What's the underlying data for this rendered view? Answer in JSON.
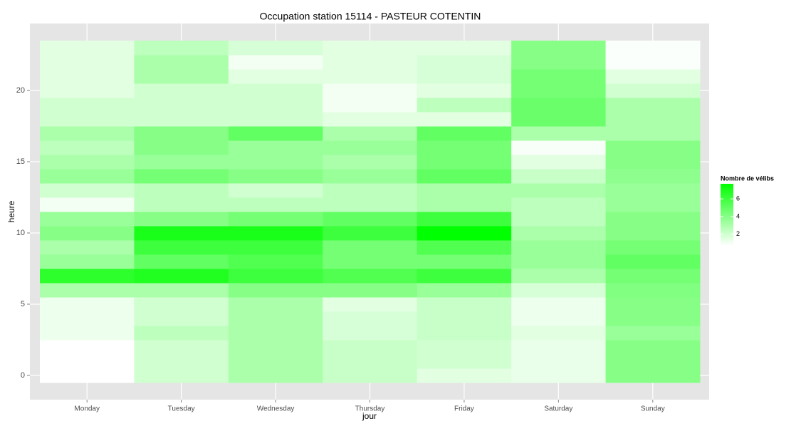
{
  "chart_data": {
    "type": "heatmap",
    "title": "Occupation station 15114 - PASTEUR COTENTIN",
    "x_label": "jour",
    "y_label": "heure",
    "categories": [
      "Monday",
      "Tuesday",
      "Wednesday",
      "Thursday",
      "Friday",
      "Saturday",
      "Sunday"
    ],
    "y": [
      0,
      1,
      2,
      3,
      4,
      5,
      6,
      7,
      8,
      9,
      10,
      11,
      12,
      13,
      14,
      15,
      16,
      17,
      18,
      19,
      20,
      21,
      22,
      23
    ],
    "values": [
      [
        0.7,
        0.7,
        0.7,
        1.2,
        1.2,
        1.2,
        3,
        6.5,
        3.5,
        3,
        4,
        3.5,
        1,
        2,
        3.5,
        3,
        2.5,
        3,
        2,
        2,
        1.5,
        1.5,
        1.5,
        1.5
      ],
      [
        2,
        2,
        2,
        2.5,
        2,
        2,
        3,
        6.8,
        5,
        6,
        7,
        4,
        2.5,
        2.5,
        4.5,
        3.5,
        4,
        4,
        2,
        2,
        2,
        3,
        3,
        2.5
      ],
      [
        3,
        3,
        3,
        3,
        3,
        3,
        4,
        6,
        5.5,
        6,
        7,
        4.5,
        2.5,
        2,
        4,
        3.5,
        3.5,
        5,
        2,
        2,
        2,
        1.5,
        1,
        1.8
      ],
      [
        2.2,
        2.2,
        2.2,
        1.8,
        1.8,
        1.5,
        4,
        5.5,
        4.5,
        4.5,
        6,
        5,
        2.5,
        2.5,
        3.5,
        3,
        3.5,
        3,
        1.5,
        1,
        1,
        1.5,
        1.5,
        1.5
      ],
      [
        1.5,
        2,
        2,
        2.2,
        2.2,
        2.2,
        3.5,
        6,
        4.5,
        5.5,
        7.7,
        6,
        3,
        3,
        5,
        4.5,
        4.5,
        5,
        1.5,
        2.5,
        1.5,
        1.8,
        1.8,
        1.5
      ],
      [
        1.3,
        1.3,
        1.3,
        1.5,
        1.2,
        1.2,
        1.8,
        3,
        3.5,
        3.5,
        3,
        2.5,
        2.5,
        3,
        2.2,
        1.5,
        0.9,
        3,
        4.8,
        4.8,
        4.5,
        4.5,
        4,
        4
      ],
      [
        4,
        4,
        4,
        3.5,
        4,
        4,
        4.2,
        4.5,
        5,
        4.5,
        4,
        4,
        3.5,
        3.5,
        3.8,
        4,
        4,
        3,
        3,
        3,
        2,
        1.5,
        0.8,
        0.8
      ]
    ],
    "low_color": "#ffffff",
    "high_color": "#00ff00",
    "ylim": [
      -1.7,
      24.7
    ],
    "yticks": [
      0,
      5,
      10,
      15,
      20
    ],
    "grid": true,
    "legend_title": "Nombre de vélibs",
    "legend_ticks": [
      2,
      4,
      6
    ],
    "legend_position": "right"
  }
}
